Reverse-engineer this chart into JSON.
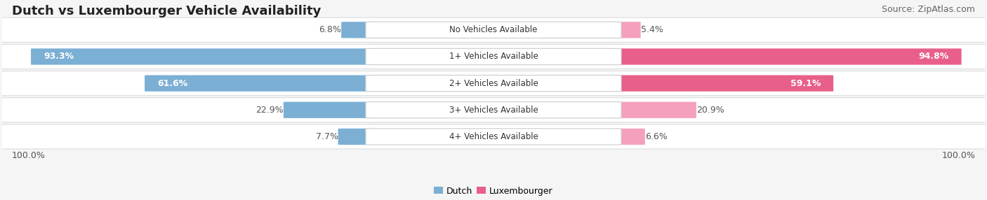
{
  "title": "Dutch vs Luxembourger Vehicle Availability",
  "source": "Source: ZipAtlas.com",
  "categories": [
    "No Vehicles Available",
    "1+ Vehicles Available",
    "2+ Vehicles Available",
    "3+ Vehicles Available",
    "4+ Vehicles Available"
  ],
  "dutch_values": [
    6.8,
    93.3,
    61.6,
    22.9,
    7.7
  ],
  "lux_values": [
    5.4,
    94.8,
    59.1,
    20.9,
    6.6
  ],
  "dutch_color": "#7bafd4",
  "lux_color_strong": "#e8608a",
  "lux_color_light": "#f5a0bc",
  "dutch_value_threshold": 30.0,
  "lux_value_threshold": 30.0,
  "max_value": 100.0,
  "bg_color": "#f5f5f5",
  "row_bg_color": "#ffffff",
  "row_border_color": "#dddddd",
  "label_bg": "#ffffff",
  "bottom_left": "100.0%",
  "bottom_right": "100.0%",
  "legend_dutch": "Dutch",
  "legend_lux": "Luxembourger",
  "title_fontsize": 13,
  "source_fontsize": 9,
  "bar_label_fontsize": 9,
  "cat_label_fontsize": 8.5,
  "legend_fontsize": 9
}
